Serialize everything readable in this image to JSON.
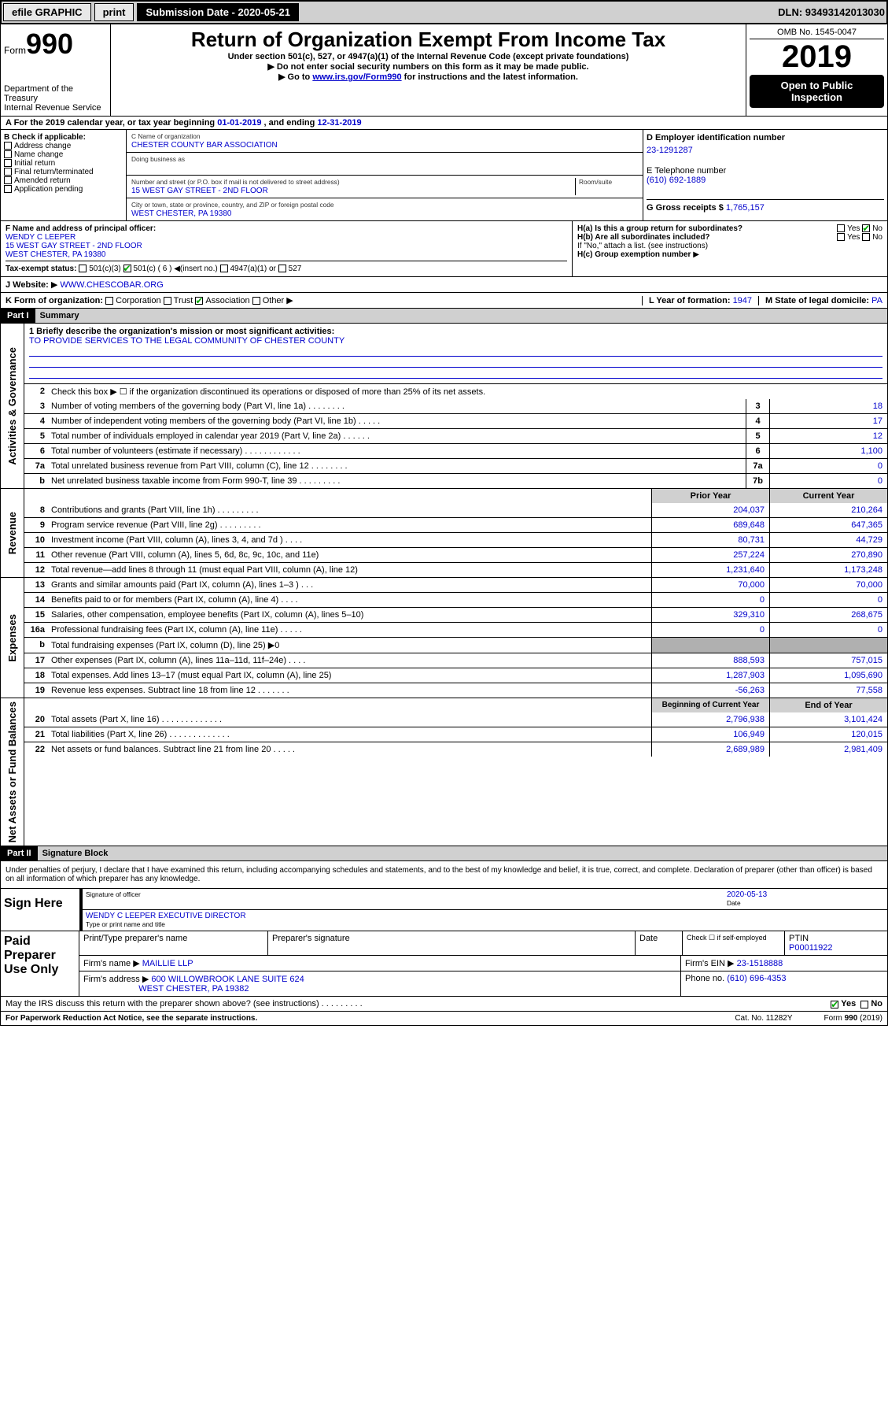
{
  "topbar": {
    "efile": "efile GRAPHIC",
    "print": "print",
    "subdate_label": "Submission Date - 2020-05-21",
    "dln": "DLN: 93493142013030"
  },
  "header": {
    "form_prefix": "Form",
    "form_no": "990",
    "dept1": "Department of the Treasury",
    "dept2": "Internal Revenue Service",
    "title": "Return of Organization Exempt From Income Tax",
    "sub1": "Under section 501(c), 527, or 4947(a)(1) of the Internal Revenue Code (except private foundations)",
    "sub2": "Do not enter social security numbers on this form as it may be made public.",
    "sub3_a": "Go to ",
    "sub3_link": "www.irs.gov/Form990",
    "sub3_b": " for instructions and the latest information.",
    "omb": "OMB No. 1545-0047",
    "year": "2019",
    "open": "Open to Public Inspection"
  },
  "sectionA": {
    "text_a": "A For the 2019 calendar year, or tax year beginning ",
    "begin": "01-01-2019",
    "text_b": " , and ending ",
    "end": "12-31-2019"
  },
  "boxB": {
    "label": "B Check if applicable:",
    "opts": [
      "Address change",
      "Name change",
      "Initial return",
      "Final return/terminated",
      "Amended return",
      "Application pending"
    ]
  },
  "boxC": {
    "name_label": "C Name of organization",
    "name": "CHESTER COUNTY BAR ASSOCIATION",
    "dba_label": "Doing business as",
    "addr_label": "Number and street (or P.O. box if mail is not delivered to street address)",
    "room_label": "Room/suite",
    "addr": "15 WEST GAY STREET - 2ND FLOOR",
    "city_label": "City or town, state or province, country, and ZIP or foreign postal code",
    "city": "WEST CHESTER, PA  19380"
  },
  "boxD": {
    "label": "D Employer identification number",
    "val": "23-1291287"
  },
  "boxE": {
    "label": "E Telephone number",
    "val": "(610) 692-1889"
  },
  "boxG": {
    "label": "G Gross receipts $",
    "val": "1,765,157"
  },
  "boxF": {
    "label": "F Name and address of principal officer:",
    "name": "WENDY C LEEPER",
    "addr1": "15 WEST GAY STREET - 2ND FLOOR",
    "addr2": "WEST CHESTER, PA  19380"
  },
  "boxH": {
    "ha": "H(a)  Is this a group return for subordinates?",
    "hb": "H(b)  Are all subordinates included?",
    "hb_note": "If \"No,\" attach a list. (see instructions)",
    "hc": "H(c)  Group exemption number",
    "yes": "Yes",
    "no": "No"
  },
  "boxI": {
    "label": "Tax-exempt status:",
    "o1": "501(c)(3)",
    "o2": "501(c) ( 6 )",
    "o2b": "(insert no.)",
    "o3": "4947(a)(1) or",
    "o4": "527"
  },
  "boxJ": {
    "label": "J    Website:",
    "val": "WWW.CHESCOBAR.ORG"
  },
  "boxK": {
    "label": "K Form of organization:",
    "o1": "Corporation",
    "o2": "Trust",
    "o3": "Association",
    "o4": "Other"
  },
  "boxL": {
    "label": "L Year of formation:",
    "val": "1947"
  },
  "boxM": {
    "label": "M State of legal domicile:",
    "val": "PA"
  },
  "part1": {
    "hdr": "Part I",
    "title": "Summary"
  },
  "mission": {
    "q": "1  Briefly describe the organization's mission or most significant activities:",
    "a": "TO PROVIDE SERVICES TO THE LEGAL COMMUNITY OF CHESTER COUNTY"
  },
  "line2": "Check this box ▶ ☐  if the organization discontinued its operations or disposed of more than 25% of its net assets.",
  "vlabels": {
    "gov": "Activities & Governance",
    "rev": "Revenue",
    "exp": "Expenses",
    "net": "Net Assets or Fund Balances"
  },
  "gov_lines": [
    {
      "n": "3",
      "d": "Number of voting members of the governing body (Part VI, line 1a)  .    .    .    .    .    .    .    .",
      "b": "3",
      "v": "18"
    },
    {
      "n": "4",
      "d": "Number of independent voting members of the governing body (Part VI, line 1b)  .    .    .    .    .",
      "b": "4",
      "v": "17"
    },
    {
      "n": "5",
      "d": "Total number of individuals employed in calendar year 2019 (Part V, line 2a)  .    .    .    .    .    .",
      "b": "5",
      "v": "12"
    },
    {
      "n": "6",
      "d": "Total number of volunteers (estimate if necessary)  .    .    .    .    .    .    .    .    .    .    .    .",
      "b": "6",
      "v": "1,100"
    },
    {
      "n": "7a",
      "d": "Total unrelated business revenue from Part VIII, column (C), line 12  .    .    .    .    .    .    .    .",
      "b": "7a",
      "v": "0"
    },
    {
      "n": "b",
      "d": "Net unrelated business taxable income from Form 990-T, line 39  .    .    .    .    .    .    .    .    .",
      "b": "7b",
      "v": "0"
    }
  ],
  "twocol_hdr": {
    "py": "Prior Year",
    "cy": "Current Year"
  },
  "rev_lines": [
    {
      "n": "8",
      "d": "Contributions and grants (Part VIII, line 1h)  .    .    .    .    .    .    .    .    .",
      "py": "204,037",
      "cy": "210,264"
    },
    {
      "n": "9",
      "d": "Program service revenue (Part VIII, line 2g)  .    .    .    .    .    .    .    .    .",
      "py": "689,648",
      "cy": "647,365"
    },
    {
      "n": "10",
      "d": "Investment income (Part VIII, column (A), lines 3, 4, and 7d )  .    .    .    .",
      "py": "80,731",
      "cy": "44,729"
    },
    {
      "n": "11",
      "d": "Other revenue (Part VIII, column (A), lines 5, 6d, 8c, 9c, 10c, and 11e)",
      "py": "257,224",
      "cy": "270,890"
    },
    {
      "n": "12",
      "d": "Total revenue—add lines 8 through 11 (must equal Part VIII, column (A), line 12)",
      "py": "1,231,640",
      "cy": "1,173,248"
    }
  ],
  "exp_lines": [
    {
      "n": "13",
      "d": "Grants and similar amounts paid (Part IX, column (A), lines 1–3 )  .    .    .",
      "py": "70,000",
      "cy": "70,000"
    },
    {
      "n": "14",
      "d": "Benefits paid to or for members (Part IX, column (A), line 4)  .    .    .    .",
      "py": "0",
      "cy": "0"
    },
    {
      "n": "15",
      "d": "Salaries, other compensation, employee benefits (Part IX, column (A), lines 5–10)",
      "py": "329,310",
      "cy": "268,675"
    },
    {
      "n": "16a",
      "d": "Professional fundraising fees (Part IX, column (A), line 11e)  .    .    .    .    .",
      "py": "0",
      "cy": "0"
    },
    {
      "n": "b",
      "d": "Total fundraising expenses (Part IX, column (D), line 25) ▶0",
      "py": "",
      "cy": "",
      "gray": true
    },
    {
      "n": "17",
      "d": "Other expenses (Part IX, column (A), lines 11a–11d, 11f–24e)  .    .    .    .",
      "py": "888,593",
      "cy": "757,015"
    },
    {
      "n": "18",
      "d": "Total expenses. Add lines 13–17 (must equal Part IX, column (A), line 25)",
      "py": "1,287,903",
      "cy": "1,095,690"
    },
    {
      "n": "19",
      "d": "Revenue less expenses. Subtract line 18 from line 12  .    .    .    .    .    .    .",
      "py": "-56,263",
      "cy": "77,558"
    }
  ],
  "net_hdr": {
    "py": "Beginning of Current Year",
    "cy": "End of Year"
  },
  "net_lines": [
    {
      "n": "20",
      "d": "Total assets (Part X, line 16)  .    .    .    .    .    .    .    .    .    .    .    .    .",
      "py": "2,796,938",
      "cy": "3,101,424"
    },
    {
      "n": "21",
      "d": "Total liabilities (Part X, line 26)  .    .    .    .    .    .    .    .    .    .    .    .    .",
      "py": "106,949",
      "cy": "120,015"
    },
    {
      "n": "22",
      "d": "Net assets or fund balances. Subtract line 21 from line 20  .    .    .    .    .",
      "py": "2,689,989",
      "cy": "2,981,409"
    }
  ],
  "part2": {
    "hdr": "Part II",
    "title": "Signature Block"
  },
  "perjury": "Under penalties of perjury, I declare that I have examined this return, including accompanying schedules and statements, and to the best of my knowledge and belief, it is true, correct, and complete. Declaration of preparer (other than officer) is based on all information of which preparer has any knowledge.",
  "sign": {
    "label": "Sign Here",
    "sig_of": "Signature of officer",
    "date_label": "Date",
    "date": "2020-05-13",
    "name": "WENDY C LEEPER EXECUTIVE DIRECTOR",
    "name_label": "Type or print name and title"
  },
  "paid": {
    "label": "Paid Preparer Use Only",
    "h1": "Print/Type preparer's name",
    "h2": "Preparer's signature",
    "h3": "Date",
    "se": "Check ☐ if self-employed",
    "ptin_l": "PTIN",
    "ptin": "P00011922",
    "firm_l": "Firm's name  ▶",
    "firm": "MAILLIE LLP",
    "ein_l": "Firm's EIN ▶",
    "ein": "23-1518888",
    "addr_l": "Firm's address ▶",
    "addr1": "600 WILLOWBROOK LANE SUITE 624",
    "addr2": "WEST CHESTER, PA  19382",
    "phone_l": "Phone no.",
    "phone": "(610) 696-4353"
  },
  "discuss": {
    "q": "May the IRS discuss this return with the preparer shown above? (see instructions)  .    .    .    .    .    .    .    .    .",
    "yes": "Yes",
    "no": "No"
  },
  "footer": {
    "pra": "For Paperwork Reduction Act Notice, see the separate instructions.",
    "cat": "Cat. No. 11282Y",
    "form": "Form 990 (2019)"
  }
}
